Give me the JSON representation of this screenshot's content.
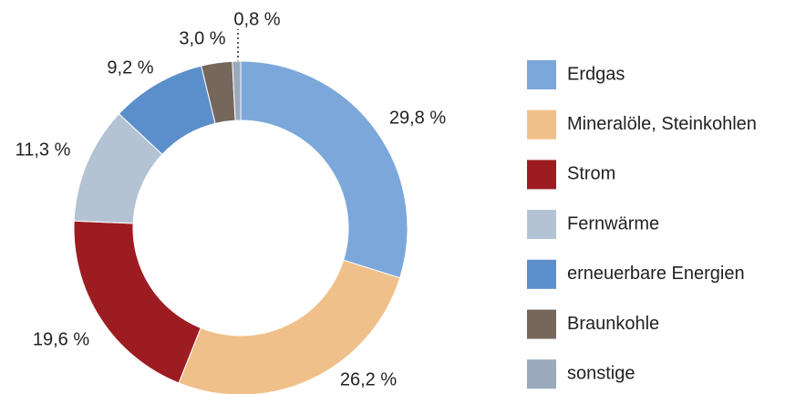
{
  "chart_data": {
    "type": "donut",
    "categories": [
      "Erdgas",
      "Mineralöle, Steinkohlen",
      "Strom",
      "Fernwärme",
      "erneuerbare Energien",
      "Braunkohle",
      "sonstige"
    ],
    "values": [
      29.8,
      26.2,
      19.6,
      11.3,
      9.2,
      3.0,
      0.8
    ],
    "value_labels": [
      "29,8 %",
      "26,2 %",
      "19,6 %",
      "11,3 %",
      "9,2 %",
      "3,0 %",
      "0,8 %"
    ],
    "colors": [
      "#7ca7da",
      "#f0c08a",
      "#9d1c22",
      "#b3c3d3",
      "#5b8fcb",
      "#76675c",
      "#9aa9bb"
    ],
    "legend": "right"
  }
}
